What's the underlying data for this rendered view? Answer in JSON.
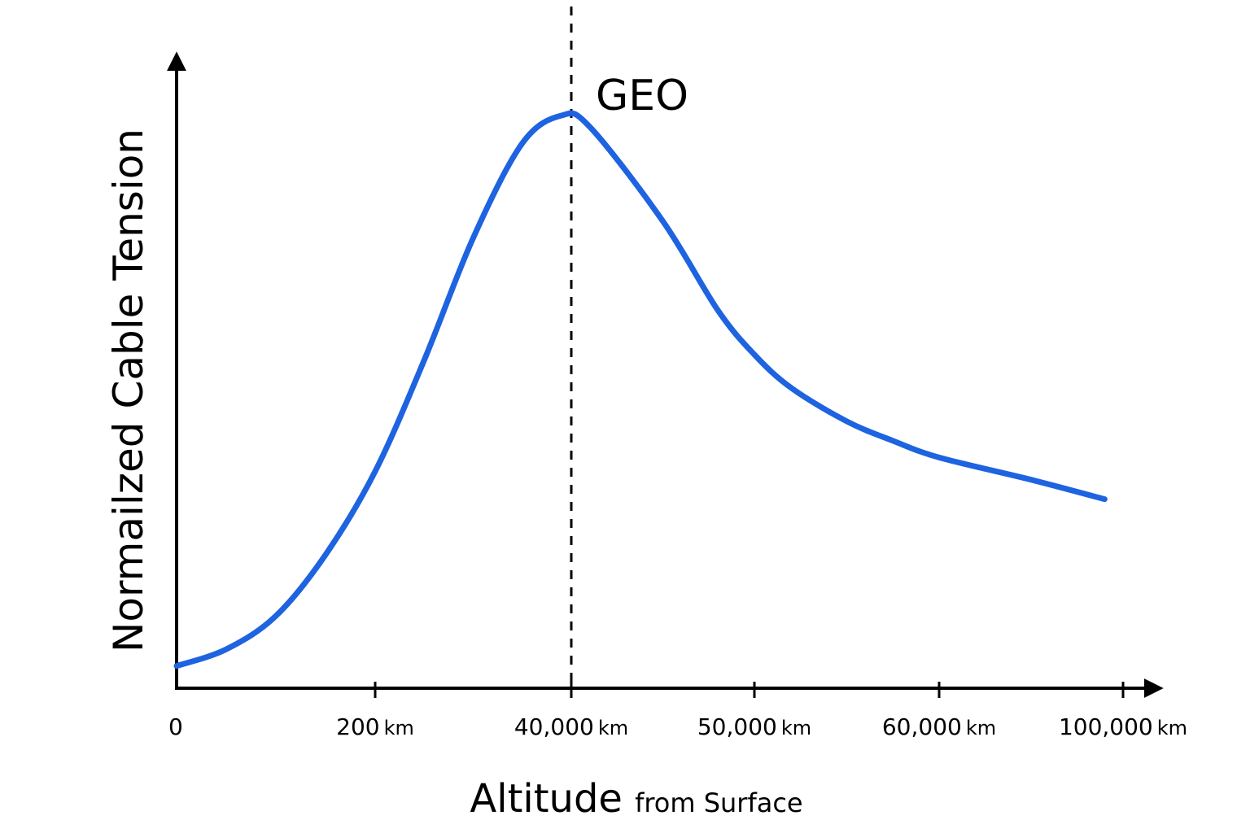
{
  "chart_data": {
    "type": "line",
    "title": "",
    "ylabel": "Normailzed Cable Tension",
    "xlabel": {
      "main": "Altitude",
      "sub": "from Surface"
    },
    "x_ticks": [
      {
        "value": "0",
        "unit": ""
      },
      {
        "value": "200",
        "unit": "km"
      },
      {
        "value": "40,000",
        "unit": "km"
      },
      {
        "value": "50,000",
        "unit": "km"
      },
      {
        "value": "60,000",
        "unit": "km"
      },
      {
        "value": "100,000",
        "unit": "km"
      }
    ],
    "x_tick_positions": [
      0,
      1,
      2,
      3,
      4,
      5
    ],
    "xlim": [
      0,
      5.1
    ],
    "ylim": [
      0,
      1.15
    ],
    "annotation": {
      "label": "GEO",
      "x": 2
    },
    "series": [
      {
        "name": "Normailzed Cable Tension",
        "color": "#1e63e0",
        "points": [
          [
            0,
            0.04
          ],
          [
            0.25,
            0.07
          ],
          [
            0.5,
            0.13
          ],
          [
            0.75,
            0.24
          ],
          [
            1.0,
            0.39
          ],
          [
            1.25,
            0.59
          ],
          [
            1.5,
            0.81
          ],
          [
            1.75,
            0.98
          ],
          [
            1.95,
            1.03
          ],
          [
            2.1,
            1.01
          ],
          [
            2.5,
            0.84
          ],
          [
            2.8,
            0.68
          ],
          [
            3.0,
            0.6
          ],
          [
            3.2,
            0.54
          ],
          [
            3.5,
            0.48
          ],
          [
            3.75,
            0.445
          ],
          [
            4.0,
            0.415
          ],
          [
            4.5,
            0.375
          ],
          [
            4.9,
            0.34
          ]
        ]
      }
    ]
  }
}
